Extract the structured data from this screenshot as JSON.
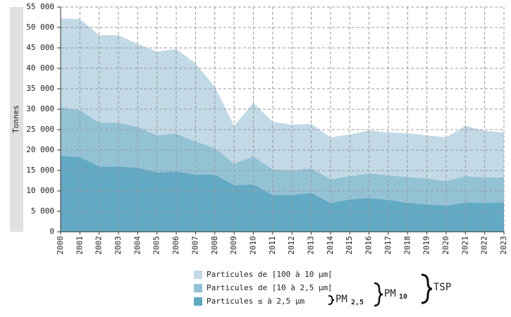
{
  "chart_data": {
    "type": "stacked_area",
    "y_label": "Tonnes",
    "categories": [
      "2000",
      "2001",
      "2002",
      "2003",
      "2004",
      "2005",
      "2006",
      "2007",
      "2008",
      "2009",
      "2010",
      "2011",
      "2012",
      "2013",
      "2014",
      "2015",
      "2016",
      "2017",
      "2018",
      "2019",
      "2020",
      "2021",
      "2022",
      "2023"
    ],
    "series": [
      {
        "name": "Particules de [100 à 10 µm[",
        "color": "#c2d9e6",
        "values": [
          21700,
          22300,
          21400,
          21400,
          20300,
          20500,
          20700,
          19100,
          15000,
          9200,
          13200,
          11600,
          11200,
          10900,
          10200,
          10200,
          10500,
          10500,
          10700,
          10500,
          10700,
          12300,
          11400,
          11000
        ]
      },
      {
        "name": "Particules de [10 à 2,5 µm[",
        "color": "#94c2d5",
        "values": [
          11900,
          11500,
          10700,
          10700,
          10000,
          9100,
          9200,
          8100,
          6500,
          5300,
          6800,
          6300,
          6000,
          6000,
          5800,
          5700,
          6000,
          6000,
          6300,
          6400,
          6000,
          6400,
          6200,
          6100
        ]
      },
      {
        "name": "Particules ≤ à 2,5 µm",
        "color": "#62a9c4",
        "values": [
          18600,
          18300,
          16000,
          16000,
          15700,
          14500,
          14800,
          14000,
          14000,
          11400,
          11600,
          9000,
          9000,
          9500,
          7100,
          7900,
          8300,
          7800,
          7100,
          6700,
          6400,
          7200,
          7100,
          7200
        ]
      }
    ],
    "ylim": [
      0,
      55000
    ],
    "yticks": [
      0,
      {
        "value": 5000,
        "label": "5 000"
      },
      {
        "value": 10000,
        "label": "10 000"
      },
      {
        "value": 15000,
        "label": "15 000"
      },
      {
        "value": 20000,
        "label": "20 000"
      },
      {
        "value": 25000,
        "label": "25 000"
      },
      {
        "value": 30000,
        "label": "30 000"
      },
      {
        "value": 35000,
        "label": "35 000"
      },
      {
        "value": 40000,
        "label": "40 000"
      },
      {
        "value": 45000,
        "label": "45 000"
      },
      {
        "value": 50000,
        "label": "50 000"
      },
      {
        "value": 55000,
        "label": "55 000"
      }
    ],
    "grid": true,
    "annotations": {
      "pm25": {
        "text": "PM",
        "sub": "2,5"
      },
      "pm10": {
        "text": "PM",
        "sub": "10"
      },
      "tsp": {
        "text": "TSP"
      }
    }
  }
}
